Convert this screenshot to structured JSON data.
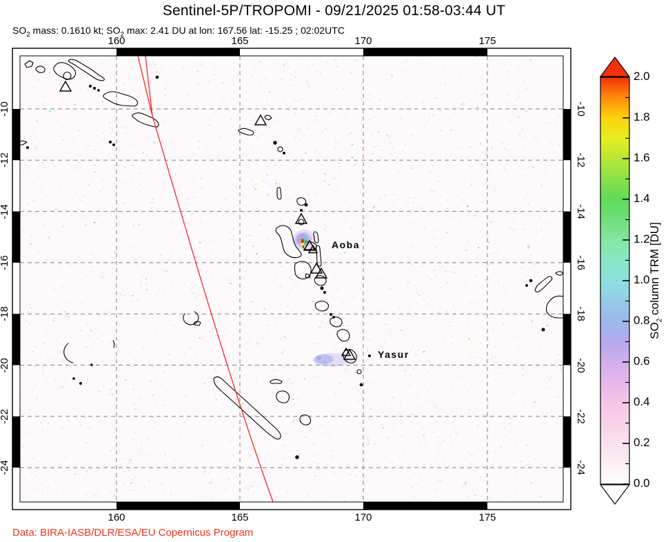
{
  "title": "Sentinel-5P/TROPOMI - 09/21/2025 01:58-03:44 UT",
  "subtitle": {
    "s1": "SO",
    "sub1": "2",
    "s2": " mass: 0.1610 kt; SO",
    "sub2": "2",
    "s3": " max: 2.41 DU at lon: 167.56 lat: -15.25 ; 02:02UTC"
  },
  "axis": {
    "lon_labels": [
      "160",
      "165",
      "170",
      "175"
    ],
    "lat_labels": [
      "-10",
      "-12",
      "-14",
      "-16",
      "-18",
      "-20",
      "-22",
      "-24"
    ]
  },
  "colorbar": {
    "label": {
      "s1": "SO",
      "sub": "2",
      "s2": " column TRM [DU]"
    },
    "tick_labels": [
      "0.0",
      "0.2",
      "0.4",
      "0.6",
      "0.8",
      "1.0",
      "1.2",
      "1.4",
      "1.6",
      "1.8",
      "2.0"
    ],
    "gradient_stops": [
      [
        0.0,
        "#ffffff"
      ],
      [
        0.05,
        "#fdeff4"
      ],
      [
        0.1,
        "#fbe1ee"
      ],
      [
        0.15,
        "#f9d2e9"
      ],
      [
        0.2,
        "#f5c4e6"
      ],
      [
        0.25,
        "#e7b7eb"
      ],
      [
        0.3,
        "#d0aeee"
      ],
      [
        0.35,
        "#b3aaee"
      ],
      [
        0.4,
        "#9eb7ec"
      ],
      [
        0.45,
        "#95cce9"
      ],
      [
        0.5,
        "#8ce0dd"
      ],
      [
        0.55,
        "#88e7c5"
      ],
      [
        0.6,
        "#85e6a2"
      ],
      [
        0.65,
        "#71de7b"
      ],
      [
        0.7,
        "#5fda58"
      ],
      [
        0.75,
        "#8be049"
      ],
      [
        0.8,
        "#b8e735"
      ],
      [
        0.85,
        "#e7ee1f"
      ],
      [
        0.9,
        "#fdd20d"
      ],
      [
        0.95,
        "#fd8c0a"
      ],
      [
        1.0,
        "#f33208"
      ]
    ],
    "top_arrow_color": "#f33208",
    "bottom_arrow_color": "#ffffff"
  },
  "annotations": {
    "volcano_labels": [
      {
        "text": "Aoba"
      },
      {
        "text": "Yasur"
      }
    ]
  },
  "footer": {
    "credit": "Data: BIRA-IASB/DLR/ESA/EU Copernicus Program",
    "color": "#f2341c"
  },
  "colors": {
    "orbit_line": "#ff2420",
    "gridline": "#808080",
    "coastline": "#000000",
    "frame": "#000000"
  }
}
